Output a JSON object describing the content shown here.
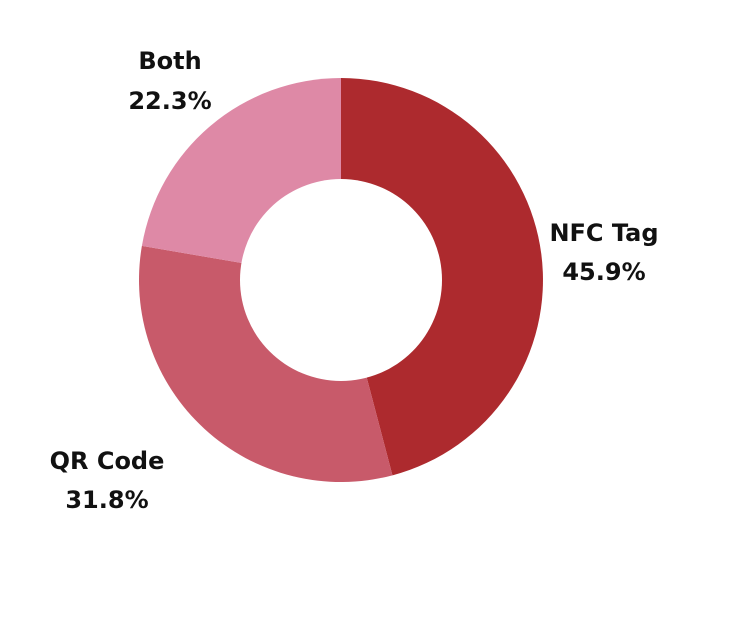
{
  "chart_data": {
    "type": "pie",
    "donut": true,
    "title": "",
    "legend": "none",
    "slices": [
      {
        "label": "NFC Tag",
        "value": 45.9,
        "value_label": "45.9%",
        "color": "#ad2a2e"
      },
      {
        "label": "QR Code",
        "value": 31.8,
        "value_label": "31.8%",
        "color": "#c85a6a"
      },
      {
        "label": "Both",
        "value": 22.3,
        "value_label": "22.3%",
        "color": "#de89a6"
      }
    ]
  }
}
